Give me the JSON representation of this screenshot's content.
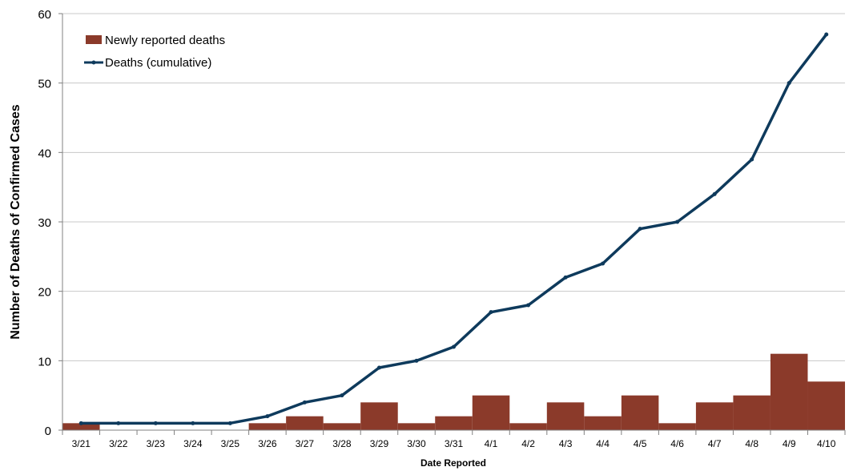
{
  "chart_data": {
    "type": "bar+line",
    "title": "",
    "xlabel": "Date Reported",
    "ylabel": "Number of Deaths of Confirmed Cases",
    "ylim": [
      0,
      60
    ],
    "yticks": [
      0,
      10,
      20,
      30,
      40,
      50,
      60
    ],
    "grid": "horizontal",
    "legend_position": "top-left",
    "categories": [
      "3/21",
      "3/22",
      "3/23",
      "3/24",
      "3/25",
      "3/26",
      "3/27",
      "3/28",
      "3/29",
      "3/30",
      "3/31",
      "4/1",
      "4/2",
      "4/3",
      "4/4",
      "4/5",
      "4/6",
      "4/7",
      "4/8",
      "4/9",
      "4/10"
    ],
    "series": [
      {
        "name": "Newly reported deaths",
        "kind": "bar",
        "color": "#8B3A2A",
        "values": [
          1,
          0,
          0,
          0,
          0,
          1,
          2,
          1,
          4,
          1,
          2,
          5,
          1,
          4,
          2,
          5,
          1,
          4,
          5,
          11,
          7
        ]
      },
      {
        "name": "Deaths (cumulative)",
        "kind": "line",
        "color": "#0E3A5C",
        "values": [
          1,
          1,
          1,
          1,
          1,
          2,
          4,
          5,
          9,
          10,
          12,
          17,
          18,
          22,
          24,
          29,
          30,
          34,
          39,
          50,
          57
        ]
      }
    ]
  }
}
